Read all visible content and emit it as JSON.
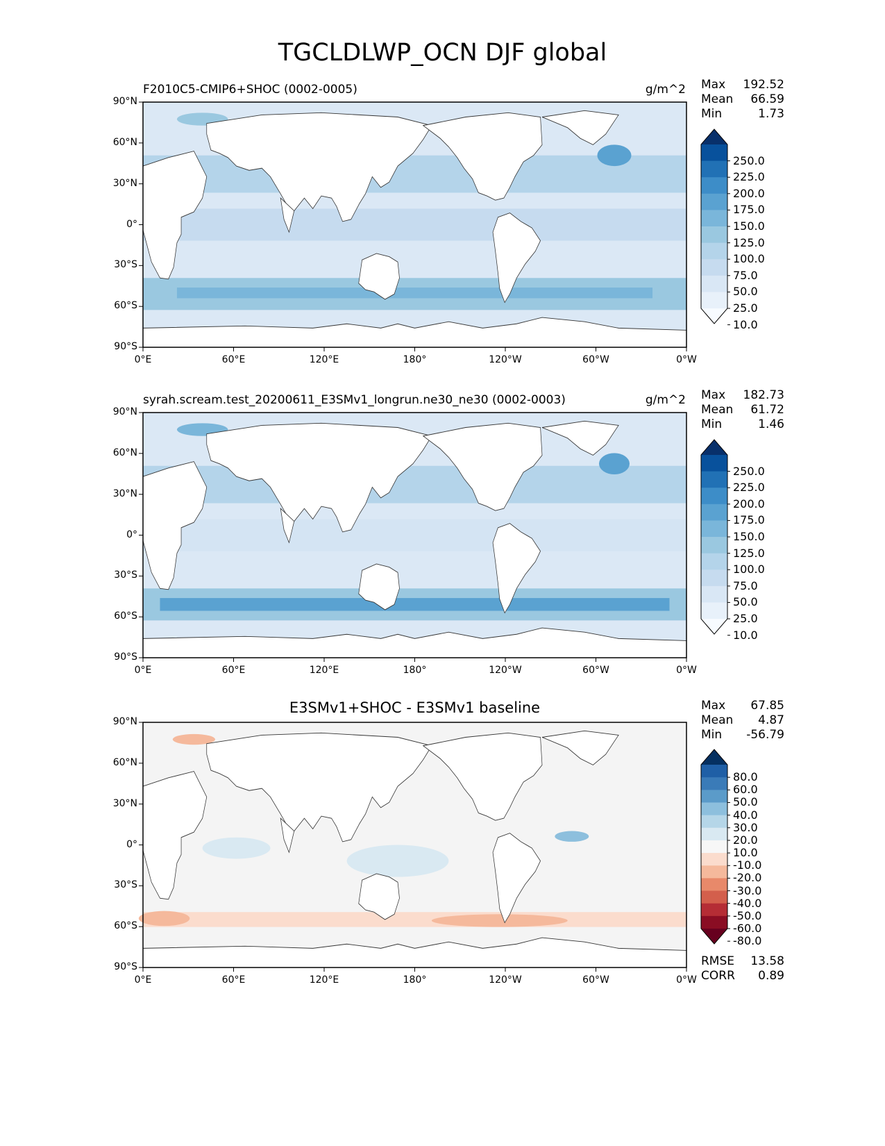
{
  "figure_title": "TGCLDLWP_OCN DJF global",
  "chart_data": [
    {
      "type": "heatmap",
      "title": "F2010C5-CMIP6+SHOC (0002-0005)",
      "units": "g/m^2",
      "stats": {
        "max": "192.52",
        "mean": "66.59",
        "min": "1.73"
      },
      "stat_labels": {
        "max": "Max",
        "mean": "Mean",
        "min": "Min"
      },
      "x_ticks": [
        "0°E",
        "60°E",
        "120°E",
        "180°",
        "120°W",
        "60°W",
        "0°W"
      ],
      "y_ticks": [
        "90°N",
        "60°N",
        "30°N",
        "0°",
        "30°S",
        "60°S",
        "90°S"
      ],
      "xlim": [
        0,
        360
      ],
      "ylim": [
        -90,
        90
      ],
      "colorbar_labels": [
        "250.0",
        "225.0",
        "200.0",
        "175.0",
        "150.0",
        "125.0",
        "100.0",
        "75.0",
        "50.0",
        "25.0",
        "10.0"
      ],
      "colorbar_colors": [
        "#08306b",
        "#08519c",
        "#2171b5",
        "#3d8dc8",
        "#5aa2d1",
        "#7ab6da",
        "#9ac8e0",
        "#b4d4ea",
        "#c6dbef",
        "#d9e7f5",
        "#e8f1fa",
        "#f7fbff"
      ]
    },
    {
      "type": "heatmap",
      "title": "syrah.scream.test_20200611_E3SMv1_longrun.ne30_ne30 (0002-0003)",
      "units": "g/m^2",
      "stats": {
        "max": "182.73",
        "mean": "61.72",
        "min": "1.46"
      },
      "stat_labels": {
        "max": "Max",
        "mean": "Mean",
        "min": "Min"
      },
      "x_ticks": [
        "0°E",
        "60°E",
        "120°E",
        "180°",
        "120°W",
        "60°W",
        "0°W"
      ],
      "y_ticks": [
        "90°N",
        "60°N",
        "30°N",
        "0°",
        "30°S",
        "60°S",
        "90°S"
      ],
      "xlim": [
        0,
        360
      ],
      "ylim": [
        -90,
        90
      ],
      "colorbar_labels": [
        "250.0",
        "225.0",
        "200.0",
        "175.0",
        "150.0",
        "125.0",
        "100.0",
        "75.0",
        "50.0",
        "25.0",
        "10.0"
      ],
      "colorbar_colors": [
        "#08306b",
        "#08519c",
        "#2171b5",
        "#3d8dc8",
        "#5aa2d1",
        "#7ab6da",
        "#9ac8e0",
        "#b4d4ea",
        "#c6dbef",
        "#d9e7f5",
        "#e8f1fa",
        "#f7fbff"
      ]
    },
    {
      "type": "heatmap",
      "title": "E3SMv1+SHOC - E3SMv1 baseline",
      "stats": {
        "max": "67.85",
        "mean": "4.87",
        "min": "-56.79"
      },
      "stat_labels": {
        "max": "Max",
        "mean": "Mean",
        "min": "Min"
      },
      "metrics": {
        "rmse_label": "RMSE",
        "rmse": "13.58",
        "corr_label": "CORR",
        "corr": "0.89"
      },
      "x_ticks": [
        "0°E",
        "60°E",
        "120°E",
        "180°",
        "120°W",
        "60°W",
        "0°W"
      ],
      "y_ticks": [
        "90°N",
        "60°N",
        "30°N",
        "0°",
        "30°S",
        "60°S",
        "90°S"
      ],
      "xlim": [
        0,
        360
      ],
      "ylim": [
        -90,
        90
      ],
      "colorbar_labels": [
        "80.0",
        "60.0",
        "50.0",
        "40.0",
        "30.0",
        "20.0",
        "10.0",
        "-10.0",
        "-20.0",
        "-30.0",
        "-40.0",
        "-50.0",
        "-60.0",
        "-80.0"
      ],
      "colorbar_colors": [
        "#053061",
        "#1f5fa6",
        "#3a7bb8",
        "#5b9bc9",
        "#8dbfdd",
        "#b5d6e8",
        "#d9e9f2",
        "#f7f7f7",
        "#fbdccd",
        "#f5b99c",
        "#e8896a",
        "#d35f4c",
        "#b52d35",
        "#8a0d23",
        "#67001f"
      ]
    }
  ],
  "colors": {
    "ocean_light": "#dbe8f5",
    "ocean_mid": "#b4d4ea",
    "ocean_band": "#7ab6da",
    "diff_neutral": "#f4f4f4",
    "diff_pos": "#9ac8e0",
    "diff_neg": "#f4b49a",
    "land": "#ffffff"
  }
}
